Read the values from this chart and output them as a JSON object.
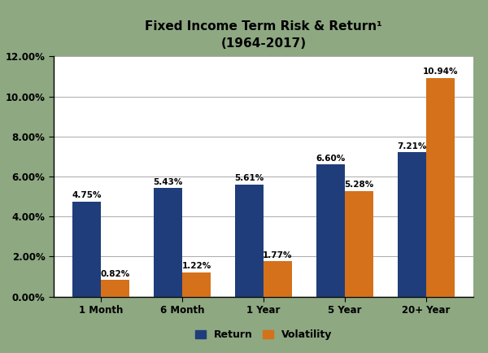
{
  "title_line1": "Fixed Income Term Risk & Return¹",
  "title_line2": "(1964-2017)",
  "categories": [
    "1 Month",
    "6 Month",
    "1 Year",
    "5 Year",
    "20+ Year"
  ],
  "return_values": [
    4.75,
    5.43,
    5.61,
    6.6,
    7.21
  ],
  "volatility_values": [
    0.82,
    1.22,
    1.77,
    5.28,
    10.94
  ],
  "return_labels": [
    "4.75%",
    "5.43%",
    "5.61%",
    "6.60%",
    "7.21%"
  ],
  "volatility_labels": [
    "0.82%",
    "1.22%",
    "1.77%",
    "5.28%",
    "10.94%"
  ],
  "return_color": "#1F3D7A",
  "volatility_color": "#D4711A",
  "ylabel_ticks": [
    "0.00%",
    "2.00%",
    "4.00%",
    "6.00%",
    "8.00%",
    "10.00%",
    "12.00%"
  ],
  "ylim": [
    0,
    12
  ],
  "bar_width": 0.35,
  "background_color": "#8EA882",
  "plot_bg_color": "#FFFFFF",
  "legend_return": "Return",
  "legend_volatility": "Volatility",
  "title_fontsize": 11,
  "subtitle_fontsize": 10,
  "label_fontsize": 7.5,
  "tick_fontsize": 8.5,
  "legend_fontsize": 9
}
